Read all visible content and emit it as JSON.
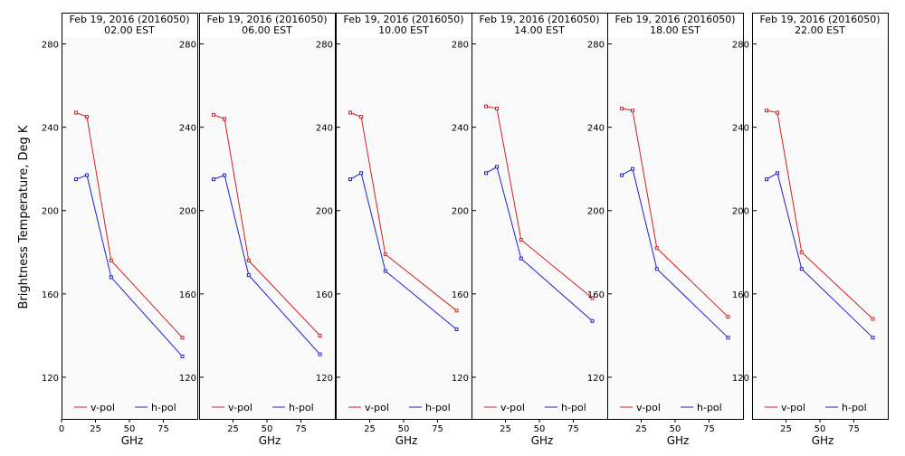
{
  "ylabel": "Brightness Temperature, Deg K",
  "colors": {
    "v_pol": "#d42020",
    "h_pol": "#2020d0",
    "frame": "#000000",
    "background": "#fafafa"
  },
  "chart_data": {
    "type": "line",
    "ylim": [
      100,
      295
    ],
    "xlim": [
      0,
      100
    ],
    "yticks": [
      120,
      160,
      200,
      240,
      280
    ],
    "xticks": [
      0,
      25,
      50,
      75
    ],
    "xlabel": "GHz",
    "legend": {
      "placement": "bottom",
      "entries": [
        "v-pol",
        "h-pol"
      ]
    },
    "grid": false,
    "panels": [
      {
        "title": "Feb 19, 2016 (2016050)",
        "subtitle": "02.00 EST",
        "series": [
          {
            "name": "v-pol",
            "x": [
              10.65,
              18.7,
              36.5,
              89.0
            ],
            "y": [
              247,
              245,
              176,
              139
            ]
          },
          {
            "name": "h-pol",
            "x": [
              10.65,
              18.7,
              36.5,
              89.0
            ],
            "y": [
              215,
              217,
              168,
              130
            ]
          }
        ]
      },
      {
        "title": "Feb 19, 2016 (2016050)",
        "subtitle": "06.00 EST",
        "series": [
          {
            "name": "v-pol",
            "x": [
              10.65,
              18.7,
              36.5,
              89.0
            ],
            "y": [
              246,
              244,
              176,
              140
            ]
          },
          {
            "name": "h-pol",
            "x": [
              10.65,
              18.7,
              36.5,
              89.0
            ],
            "y": [
              215,
              217,
              169,
              131
            ]
          }
        ]
      },
      {
        "title": "Feb 19, 2016 (2016050)",
        "subtitle": "10.00 EST",
        "series": [
          {
            "name": "v-pol",
            "x": [
              10.65,
              18.7,
              36.5,
              89.0
            ],
            "y": [
              247,
              245,
              179,
              152
            ]
          },
          {
            "name": "h-pol",
            "x": [
              10.65,
              18.7,
              36.5,
              89.0
            ],
            "y": [
              215,
              218,
              171,
              143
            ]
          }
        ]
      },
      {
        "title": "Feb 19, 2016 (2016050)",
        "subtitle": "14.00 EST",
        "series": [
          {
            "name": "v-pol",
            "x": [
              10.65,
              18.7,
              36.5,
              89.0
            ],
            "y": [
              250,
              249,
              186,
              158
            ]
          },
          {
            "name": "h-pol",
            "x": [
              10.65,
              18.7,
              36.5,
              89.0
            ],
            "y": [
              218,
              221,
              177,
              147
            ]
          }
        ]
      },
      {
        "title": "Feb 19, 2016 (2016050)",
        "subtitle": "18.00 EST",
        "series": [
          {
            "name": "v-pol",
            "x": [
              10.65,
              18.7,
              36.5,
              89.0
            ],
            "y": [
              249,
              248,
              182,
              149
            ]
          },
          {
            "name": "h-pol",
            "x": [
              10.65,
              18.7,
              36.5,
              89.0
            ],
            "y": [
              217,
              220,
              172,
              139
            ]
          }
        ]
      },
      {
        "title": "Feb 19, 2016 (2016050)",
        "subtitle": "22.00 EST",
        "series": [
          {
            "name": "v-pol",
            "x": [
              10.65,
              18.7,
              36.5,
              89.0
            ],
            "y": [
              248,
              247,
              180,
              148
            ]
          },
          {
            "name": "h-pol",
            "x": [
              10.65,
              18.7,
              36.5,
              89.0
            ],
            "y": [
              215,
              218,
              172,
              139
            ]
          }
        ]
      }
    ]
  }
}
